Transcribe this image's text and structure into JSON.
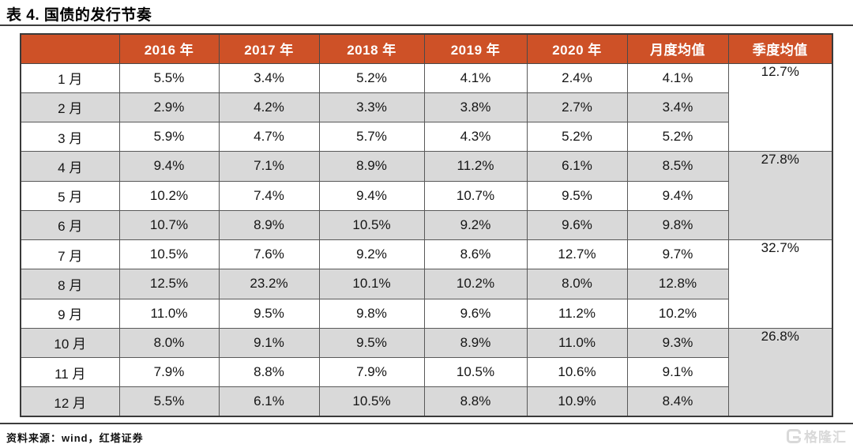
{
  "title": "表 4. 国债的发行节奏",
  "table": {
    "columns": [
      "",
      "2016 年",
      "2017 年",
      "2018 年",
      "2019 年",
      "2020 年",
      "月度均值",
      "季度均值"
    ],
    "rows": [
      {
        "month": "1 月",
        "values": [
          "5.5%",
          "3.4%",
          "5.2%",
          "4.1%",
          "2.4%",
          "4.1%"
        ],
        "quarter": "12.7%"
      },
      {
        "month": "2 月",
        "values": [
          "2.9%",
          "4.2%",
          "3.3%",
          "3.8%",
          "2.7%",
          "3.4%"
        ]
      },
      {
        "month": "3 月",
        "values": [
          "5.9%",
          "4.7%",
          "5.7%",
          "4.3%",
          "5.2%",
          "5.2%"
        ]
      },
      {
        "month": "4 月",
        "values": [
          "9.4%",
          "7.1%",
          "8.9%",
          "11.2%",
          "6.1%",
          "8.5%"
        ],
        "quarter": "27.8%"
      },
      {
        "month": "5 月",
        "values": [
          "10.2%",
          "7.4%",
          "9.4%",
          "10.7%",
          "9.5%",
          "9.4%"
        ]
      },
      {
        "month": "6 月",
        "values": [
          "10.7%",
          "8.9%",
          "10.5%",
          "9.2%",
          "9.6%",
          "9.8%"
        ]
      },
      {
        "month": "7 月",
        "values": [
          "10.5%",
          "7.6%",
          "9.2%",
          "8.6%",
          "12.7%",
          "9.7%"
        ],
        "quarter": "32.7%"
      },
      {
        "month": "8 月",
        "values": [
          "12.5%",
          "23.2%",
          "10.1%",
          "10.2%",
          "8.0%",
          "12.8%"
        ]
      },
      {
        "month": "9 月",
        "values": [
          "11.0%",
          "9.5%",
          "9.8%",
          "9.6%",
          "11.2%",
          "10.2%"
        ]
      },
      {
        "month": "10 月",
        "values": [
          "8.0%",
          "9.1%",
          "9.5%",
          "8.9%",
          "11.0%",
          "9.3%"
        ],
        "quarter": "26.8%"
      },
      {
        "month": "11 月",
        "values": [
          "7.9%",
          "8.8%",
          "7.9%",
          "10.5%",
          "10.6%",
          "9.1%"
        ]
      },
      {
        "month": "12 月",
        "values": [
          "5.5%",
          "6.1%",
          "10.5%",
          "8.8%",
          "10.9%",
          "8.4%"
        ]
      }
    ]
  },
  "chart_data": {
    "type": "table",
    "title": "表 4. 国债的发行节奏",
    "categories": [
      "1月",
      "2月",
      "3月",
      "4月",
      "5月",
      "6月",
      "7月",
      "8月",
      "9月",
      "10月",
      "11月",
      "12月"
    ],
    "series": [
      {
        "name": "2016 年",
        "values": [
          5.5,
          2.9,
          5.9,
          9.4,
          10.2,
          10.7,
          10.5,
          12.5,
          11.0,
          8.0,
          7.9,
          5.5
        ]
      },
      {
        "name": "2017 年",
        "values": [
          3.4,
          4.2,
          4.7,
          7.1,
          7.4,
          8.9,
          7.6,
          23.2,
          9.5,
          9.1,
          8.8,
          6.1
        ]
      },
      {
        "name": "2018 年",
        "values": [
          5.2,
          3.3,
          5.7,
          8.9,
          9.4,
          10.5,
          9.2,
          10.1,
          9.8,
          9.5,
          7.9,
          10.5
        ]
      },
      {
        "name": "2019 年",
        "values": [
          4.1,
          3.8,
          4.3,
          11.2,
          10.7,
          9.2,
          8.6,
          10.2,
          9.6,
          8.9,
          10.5,
          8.8
        ]
      },
      {
        "name": "2020 年",
        "values": [
          2.4,
          2.7,
          5.2,
          6.1,
          9.5,
          9.6,
          12.7,
          8.0,
          11.2,
          11.0,
          10.6,
          10.9
        ]
      },
      {
        "name": "月度均值",
        "values": [
          4.1,
          3.4,
          5.2,
          8.5,
          9.4,
          9.8,
          9.7,
          12.8,
          10.2,
          9.3,
          9.1,
          8.4
        ]
      }
    ],
    "quarterly_averages": {
      "Q1": 12.7,
      "Q2": 27.8,
      "Q3": 32.7,
      "Q4": 26.8
    }
  },
  "source": "资料来源：wind，红塔证券",
  "watermark": {
    "brand": "格隆汇"
  },
  "colors": {
    "header_bg": "#CE5127",
    "stripe": "#D9D9D9",
    "grid_border": "#595959",
    "rule": "#3d3d3d",
    "watermark": "#d9d9d9"
  }
}
